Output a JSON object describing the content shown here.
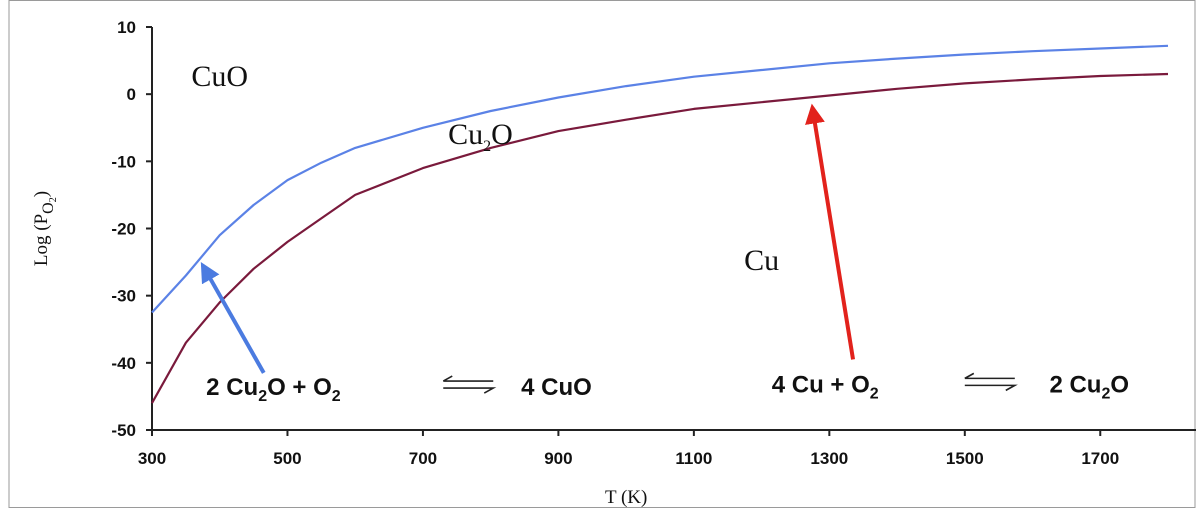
{
  "chart_data": {
    "type": "line",
    "xlabel": "T (K)",
    "ylabel_main": "Log (P",
    "ylabel_sub": "O",
    "ylabel_sub2": "2",
    "ylabel_close": ")",
    "xlim": [
      300,
      1800
    ],
    "ylim": [
      -50,
      10
    ],
    "x_ticks": [
      300,
      500,
      700,
      900,
      1100,
      1300,
      1500,
      1700
    ],
    "x_tick_labels": [
      "300",
      "500",
      "700",
      "900",
      "1100",
      "1300",
      "1500",
      "1700"
    ],
    "y_ticks": [
      10,
      0,
      -10,
      -20,
      -30,
      -40,
      -50
    ],
    "y_tick_labels": [
      "10",
      "0",
      "-10",
      "-20",
      "-30",
      "-40",
      "-50"
    ],
    "grid": false,
    "series": [
      {
        "color": "#5b82e6",
        "x": [
          300,
          350,
          400,
          450,
          500,
          550,
          600,
          700,
          800,
          900,
          1000,
          1100,
          1200,
          1300,
          1400,
          1500,
          1600,
          1700,
          1800
        ],
        "y": [
          -32.5,
          -27,
          -21,
          -16.5,
          -12.8,
          -10.2,
          -8.0,
          -5.0,
          -2.5,
          -0.5,
          1.2,
          2.6,
          3.6,
          4.6,
          5.3,
          5.9,
          6.4,
          6.8,
          7.2
        ]
      },
      {
        "color": "#7a1a3c",
        "x": [
          300,
          350,
          400,
          450,
          500,
          550,
          600,
          700,
          800,
          900,
          1000,
          1100,
          1200,
          1300,
          1400,
          1500,
          1600,
          1700,
          1800
        ],
        "y": [
          -46,
          -37,
          -31,
          -26,
          -22,
          -18.5,
          -15,
          -11,
          -8,
          -5.5,
          -3.8,
          -2.2,
          -1.2,
          -0.2,
          0.8,
          1.6,
          2.2,
          2.7,
          3.0
        ]
      }
    ],
    "regions": [
      {
        "main": "CuO",
        "sub": "",
        "tail": "",
        "x": 400,
        "y": 1.2
      },
      {
        "main": "Cu",
        "sub": "2",
        "tail": "O",
        "x": 785,
        "y": -7.4
      },
      {
        "main": "Cu",
        "sub": "",
        "tail": "",
        "x": 1200,
        "y": -26.2
      }
    ],
    "arrows": [
      {
        "color": "#4b7be0",
        "from": [
          465,
          -41.5
        ],
        "to": [
          375,
          -25.5
        ]
      },
      {
        "color": "#e2221c",
        "from": [
          1335,
          -39.5
        ],
        "to": [
          1275,
          -2.0
        ]
      }
    ],
    "reactions": [
      {
        "parts": [
          {
            "t": "2 Cu",
            "sub": false
          },
          {
            "t": "2",
            "sub": true
          },
          {
            "t": "O + O",
            "sub": false
          },
          {
            "t": "2",
            "sub": true
          }
        ],
        "product": [
          {
            "t": "4 CuO",
            "sub": false
          }
        ],
        "x": 380,
        "y": -44.8,
        "arrow_x": 730,
        "product_x": 845
      },
      {
        "parts": [
          {
            "t": "4 Cu + O",
            "sub": false
          },
          {
            "t": "2",
            "sub": true
          }
        ],
        "product": [
          {
            "t": "2 Cu",
            "sub": false
          },
          {
            "t": "2",
            "sub": true
          },
          {
            "t": "O",
            "sub": false
          }
        ],
        "x": 1215,
        "y": -44.4,
        "arrow_x": 1500,
        "product_x": 1625
      }
    ]
  }
}
